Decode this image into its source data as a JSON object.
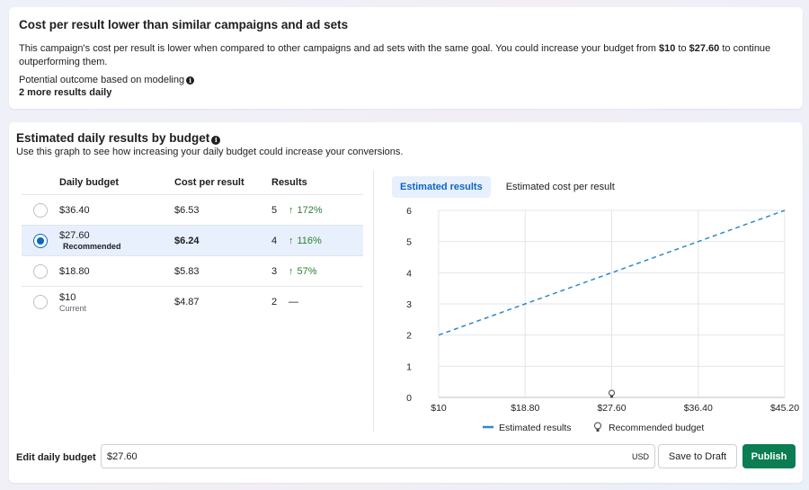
{
  "insight": {
    "title": "Cost per result lower than similar campaigns and ad sets",
    "body_before": "This campaign's cost per result is lower when compared to other campaigns and ad sets with the same goal. You could increase your budget from ",
    "from_value": "$10",
    "body_middle": " to ",
    "to_value": "$27.60",
    "body_after": " to continue outperforming them.",
    "outcome_label": "Potential outcome based on modeling",
    "outcome_value": "2 more results daily"
  },
  "section": {
    "title": "Estimated daily results by budget",
    "description": "Use this graph to see how increasing your daily budget could increase your conversions."
  },
  "table": {
    "headers": {
      "budget": "Daily budget",
      "cost": "Cost per result",
      "results": "Results"
    },
    "rows": [
      {
        "budget": "$36.40",
        "sub": "",
        "cost": "$6.53",
        "results": "5",
        "change": "172%",
        "selected": false
      },
      {
        "budget": "$27.60",
        "sub": "Recommended",
        "cost": "$6.24",
        "results": "4",
        "change": "116%",
        "selected": true
      },
      {
        "budget": "$18.80",
        "sub": "",
        "cost": "$5.83",
        "results": "3",
        "change": "57%",
        "selected": false
      },
      {
        "budget": "$10",
        "sub": "Current",
        "cost": "$4.87",
        "results": "2",
        "change": "—",
        "selected": false
      }
    ]
  },
  "chart_tabs": {
    "active": "Estimated results",
    "inactive": "Estimated cost per result"
  },
  "chart_data": {
    "type": "line",
    "x": [
      "$10",
      "$18.80",
      "$27.60",
      "$36.40",
      "$45.20"
    ],
    "series": [
      {
        "name": "Estimated results",
        "values": [
          2,
          3,
          4,
          5,
          6
        ],
        "style": "dashed",
        "color": "#2d88c8"
      }
    ],
    "ylim": [
      0,
      6
    ],
    "yticks": [
      "0",
      "1",
      "2",
      "3",
      "4",
      "5",
      "6"
    ],
    "grid": true,
    "marker": {
      "label": "Recommended budget",
      "x": "$27.60",
      "icon": "bulb-icon"
    },
    "legend": [
      "Estimated results",
      "Recommended budget"
    ],
    "legend_position": "bottom"
  },
  "footer": {
    "edit_label": "Edit daily budget",
    "budget_value": "$27.60",
    "currency": "USD",
    "save_label": "Save to Draft",
    "publish_label": "Publish"
  },
  "colors": {
    "primary": "#0a66c2",
    "publish": "#0b7d53",
    "positive": "#2e7d32",
    "line": "#2d88c8"
  }
}
